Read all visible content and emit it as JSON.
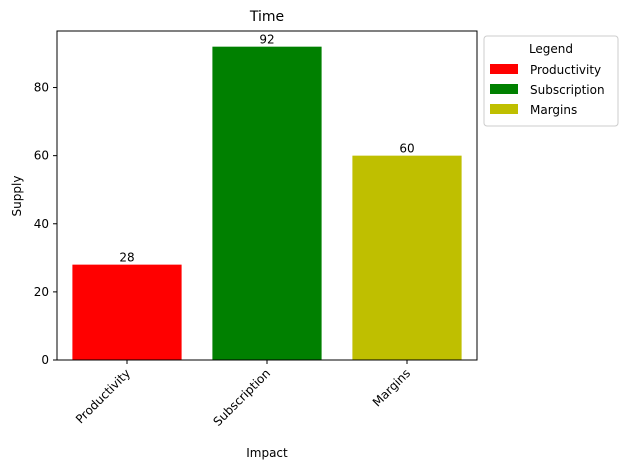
{
  "chart_data": {
    "type": "bar",
    "title": "Time",
    "xlabel": "Impact",
    "ylabel": "Supply",
    "categories": [
      "Productivity",
      "Subscription",
      "Margins"
    ],
    "values": [
      28,
      92,
      60
    ],
    "colors": [
      "#ff0000",
      "#008000",
      "#bfbf00"
    ],
    "ylim": [
      0,
      96.6
    ],
    "yticks": [
      0,
      20,
      40,
      60,
      80
    ],
    "grid": false,
    "legend": {
      "title": "Legend",
      "placement": "outside-top-right",
      "entries": [
        "Productivity",
        "Subscription",
        "Margins"
      ]
    }
  }
}
